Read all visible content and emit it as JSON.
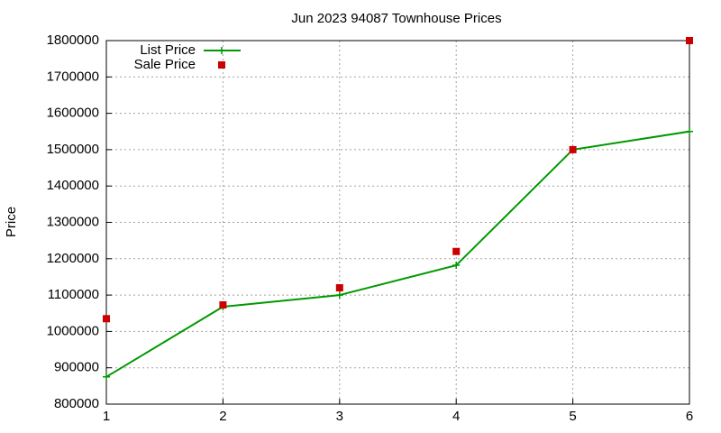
{
  "chart_data": {
    "type": "line",
    "title": "Jun 2023 94087 Townhouse Prices",
    "y_label": "Price",
    "x": [
      1,
      2,
      3,
      4,
      5,
      6
    ],
    "series": [
      {
        "name": "List Price",
        "color": "#009900",
        "mode": "lines+markers",
        "marker": "plus",
        "values": [
          875000,
          1068000,
          1100000,
          1182000,
          1500000,
          1550000
        ]
      },
      {
        "name": "Sale Price",
        "color": "#cc0000",
        "mode": "markers",
        "marker": "square",
        "values": [
          1035000,
          1073000,
          1120000,
          1220000,
          1500000,
          1800000
        ]
      }
    ],
    "xlim": [
      1,
      6
    ],
    "xticks": [
      1,
      2,
      3,
      4,
      5,
      6
    ],
    "ylim": [
      800000,
      1800000
    ],
    "yticks": [
      800000,
      900000,
      1000000,
      1100000,
      1200000,
      1300000,
      1400000,
      1500000,
      1600000,
      1700000,
      1800000
    ],
    "grid": true,
    "legend": "top-left"
  }
}
